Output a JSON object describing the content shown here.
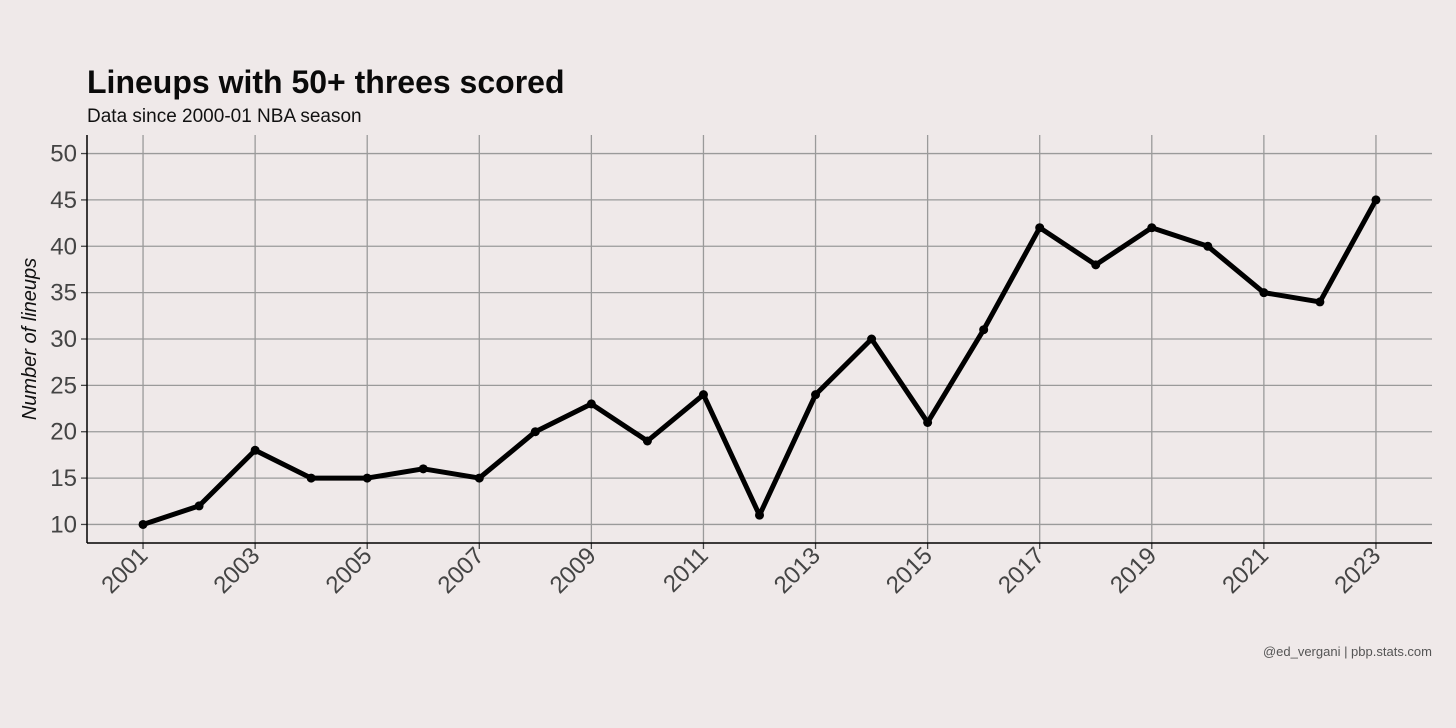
{
  "chart_data": {
    "type": "line",
    "title": "Lineups with 50+ threes scored",
    "subtitle": "Data since 2000-01 NBA season",
    "ylabel": "Number of lineups",
    "xlabel": "",
    "caption": "@ed_vergani | pbp.stats.com",
    "ylim": [
      8,
      52
    ],
    "xlim": [
      2000,
      2024
    ],
    "y_ticks": [
      10,
      15,
      20,
      25,
      30,
      35,
      40,
      45,
      50
    ],
    "x_ticks": [
      2001,
      2003,
      2005,
      2007,
      2009,
      2011,
      2013,
      2015,
      2017,
      2019,
      2021,
      2023
    ],
    "grid": true,
    "x": [
      2001,
      2002,
      2003,
      2004,
      2005,
      2006,
      2007,
      2008,
      2009,
      2010,
      2011,
      2012,
      2013,
      2014,
      2015,
      2016,
      2017,
      2018,
      2019,
      2020,
      2021,
      2022,
      2023
    ],
    "y": [
      10,
      12,
      18,
      15,
      15,
      16,
      15,
      20,
      23,
      19,
      24,
      11,
      24,
      30,
      21,
      31,
      42,
      38,
      42,
      40,
      35,
      34,
      45
    ],
    "line_color": "#000000",
    "background_color": "#efe9e9",
    "grid_color": "#9a9a9a"
  }
}
